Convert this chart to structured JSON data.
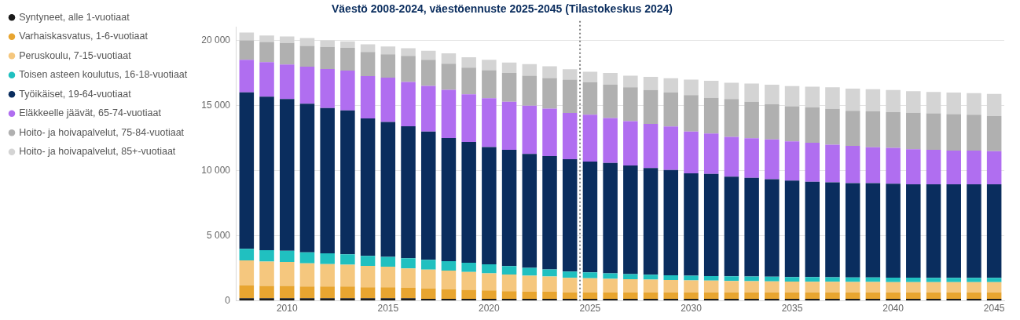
{
  "chart_data": {
    "type": "bar",
    "title": "Väestö 2008-2024, väestöennuste 2025-2045 (Tilastokeskus 2024)",
    "stacked": true,
    "legend": "left",
    "grid": "y",
    "x": [
      2008,
      2009,
      2010,
      2011,
      2012,
      2013,
      2014,
      2015,
      2016,
      2017,
      2018,
      2019,
      2020,
      2021,
      2022,
      2023,
      2024,
      2025,
      2026,
      2027,
      2028,
      2029,
      2030,
      2031,
      2032,
      2033,
      2034,
      2035,
      2036,
      2037,
      2038,
      2039,
      2040,
      2041,
      2042,
      2043,
      2044,
      2045
    ],
    "xlim": [
      2007.5,
      2045.5
    ],
    "xticks": [
      2010,
      2015,
      2020,
      2025,
      2030,
      2035,
      2040,
      2045
    ],
    "ylim": [
      0,
      21000
    ],
    "yticks": [
      {
        "value": 0,
        "label": "0"
      },
      {
        "value": 5000,
        "label": "5 000"
      },
      {
        "value": 10000,
        "label": "10 000"
      },
      {
        "value": 15000,
        "label": "15 000"
      },
      {
        "value": 20000,
        "label": "20 000"
      }
    ],
    "ref_lines": [
      {
        "axis": "x",
        "value": 2024.5,
        "color": "#808080",
        "line_style": "dotted"
      }
    ],
    "series": [
      {
        "name": "Syntyneet, alle 1-vuotiaat",
        "color": "#1a1a1a",
        "values": [
          200,
          200,
          200,
          200,
          200,
          200,
          200,
          200,
          200,
          150,
          150,
          150,
          150,
          150,
          150,
          150,
          150,
          150,
          150,
          150,
          150,
          150,
          150,
          150,
          150,
          150,
          150,
          150,
          150,
          150,
          150,
          150,
          150,
          150,
          150,
          150,
          150,
          150
        ]
      },
      {
        "name": "Varhaiskasvatus, 1-6-vuotiaat",
        "color": "#e8a530",
        "values": [
          1000,
          950,
          950,
          900,
          900,
          900,
          850,
          850,
          800,
          800,
          750,
          700,
          650,
          600,
          550,
          550,
          500,
          500,
          500,
          500,
          500,
          500,
          500,
          500,
          500,
          500,
          500,
          500,
          500,
          500,
          500,
          500,
          500,
          500,
          500,
          500,
          500,
          500
        ]
      },
      {
        "name": "Peruskoulu, 7-15-vuotiaat",
        "color": "#f5c77e",
        "values": [
          1900,
          1870,
          1830,
          1780,
          1720,
          1670,
          1630,
          1580,
          1490,
          1450,
          1420,
          1370,
          1320,
          1280,
          1230,
          1170,
          1110,
          1080,
          1040,
          1010,
          980,
          950,
          920,
          900,
          880,
          860,
          840,
          830,
          820,
          810,
          800,
          800,
          790,
          790,
          780,
          780,
          780,
          780
        ]
      },
      {
        "name": "Toisen asteen koulutus, 16-18-vuotiaat",
        "color": "#20c0c0",
        "values": [
          900,
          870,
          870,
          850,
          830,
          800,
          770,
          750,
          780,
          750,
          730,
          700,
          680,
          640,
          600,
          540,
          490,
          460,
          420,
          400,
          380,
          370,
          370,
          360,
          360,
          360,
          360,
          350,
          350,
          350,
          350,
          340,
          340,
          340,
          340,
          340,
          330,
          330
        ]
      },
      {
        "name": "Työikäiset, 19-64-vuotiaat",
        "color": "#0a2d5e",
        "values": [
          12000,
          11780,
          11650,
          11400,
          11150,
          11050,
          10550,
          10350,
          10130,
          9850,
          9450,
          9280,
          9000,
          8920,
          8750,
          8700,
          8630,
          8500,
          8480,
          8330,
          8180,
          8070,
          7850,
          7830,
          7650,
          7570,
          7490,
          7410,
          7320,
          7280,
          7240,
          7250,
          7210,
          7160,
          7170,
          7170,
          7180,
          7180
        ]
      },
      {
        "name": "Eläkkeelle jäävät, 65-74-vuotiaat",
        "color": "#b06ef0",
        "values": [
          2500,
          2650,
          2650,
          2850,
          3000,
          3050,
          3250,
          3400,
          3400,
          3500,
          3700,
          3650,
          3750,
          3700,
          3700,
          3650,
          3550,
          3600,
          3450,
          3400,
          3400,
          3350,
          3200,
          3100,
          3050,
          3050,
          3050,
          3000,
          3000,
          2900,
          2850,
          2750,
          2750,
          2700,
          2650,
          2600,
          2600,
          2550
        ]
      },
      {
        "name": "Hoito- ja hoivapalvelut, 75-84-vuotiaat",
        "color": "#b0b0b0",
        "values": [
          1500,
          1550,
          1650,
          1600,
          1700,
          1750,
          1850,
          1800,
          2000,
          2000,
          2000,
          2050,
          2150,
          2200,
          2300,
          2350,
          2550,
          2500,
          2550,
          2600,
          2600,
          2600,
          2800,
          2750,
          2900,
          2800,
          2700,
          2700,
          2700,
          2750,
          2700,
          2750,
          2750,
          2800,
          2800,
          2800,
          2750,
          2700
        ]
      },
      {
        "name": "Hoito- ja hoivapalvelut, 85+-vuotiaat",
        "color": "#d4d4d4",
        "values": [
          600,
          500,
          500,
          600,
          500,
          500,
          600,
          600,
          600,
          700,
          800,
          800,
          800,
          800,
          900,
          900,
          800,
          800,
          900,
          900,
          1000,
          1100,
          1200,
          1300,
          1250,
          1400,
          1500,
          1550,
          1600,
          1650,
          1700,
          1700,
          1700,
          1650,
          1650,
          1650,
          1650,
          1700
        ]
      }
    ]
  }
}
